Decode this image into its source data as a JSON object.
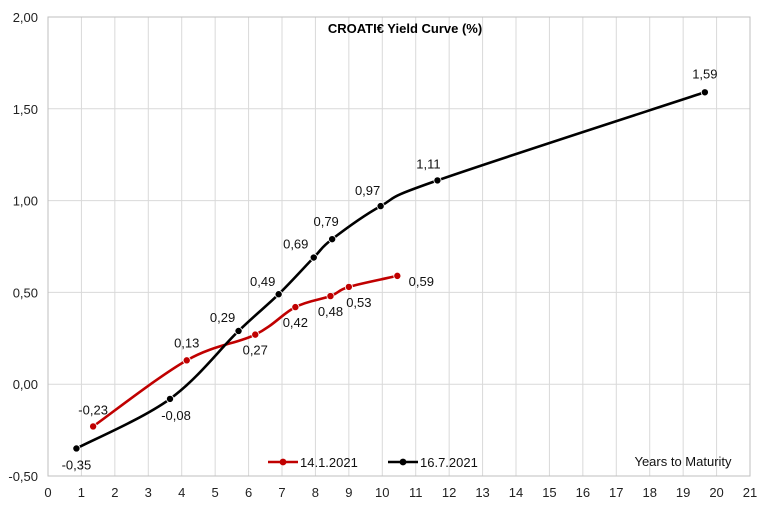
{
  "chart_data": {
    "type": "line",
    "title": "CROATI€ Yield Curve (%)",
    "xlabel": "Years to Maturity",
    "ylabel": "",
    "xlim": [
      0,
      21
    ],
    "ylim": [
      -0.5,
      2.0
    ],
    "x_ticks": [
      0,
      1,
      2,
      3,
      4,
      5,
      6,
      7,
      8,
      9,
      10,
      11,
      12,
      13,
      14,
      15,
      16,
      17,
      18,
      19,
      20,
      21
    ],
    "y_ticks": [
      -0.5,
      0,
      0.5,
      1.0,
      1.5,
      2.0
    ],
    "y_tick_labels": [
      "-0,50",
      "0,00",
      "0,50",
      "1,00",
      "1,50",
      "2,00"
    ],
    "grid": true,
    "legend_position": "bottom-center",
    "series": [
      {
        "name": "14.1.2021",
        "color": "#c00000",
        "points": [
          {
            "x": 1.35,
            "y": -0.23,
            "label": "-0,23"
          },
          {
            "x": 4.15,
            "y": 0.13,
            "label": "0,13"
          },
          {
            "x": 6.2,
            "y": 0.27,
            "label": "0,27"
          },
          {
            "x": 7.4,
            "y": 0.42,
            "label": "0,42"
          },
          {
            "x": 8.45,
            "y": 0.48,
            "label": "0,48"
          },
          {
            "x": 9.0,
            "y": 0.53,
            "label": "0,53"
          },
          {
            "x": 10.45,
            "y": 0.59,
            "label": "0,59"
          }
        ]
      },
      {
        "name": "16.7.2021",
        "color": "#000000",
        "points": [
          {
            "x": 0.85,
            "y": -0.35,
            "label": "-0,35"
          },
          {
            "x": 3.65,
            "y": -0.08,
            "label": "-0,08"
          },
          {
            "x": 5.7,
            "y": 0.29,
            "label": "0,29"
          },
          {
            "x": 6.9,
            "y": 0.49,
            "label": "0,49"
          },
          {
            "x": 7.95,
            "y": 0.69,
            "label": "0,69"
          },
          {
            "x": 8.5,
            "y": 0.79,
            "label": "0,79"
          },
          {
            "x": 9.95,
            "y": 0.97,
            "label": "0,97"
          },
          {
            "x": 11.65,
            "y": 1.11,
            "label": "1,11"
          },
          {
            "x": 19.65,
            "y": 1.59,
            "label": "1,59"
          }
        ]
      }
    ]
  }
}
